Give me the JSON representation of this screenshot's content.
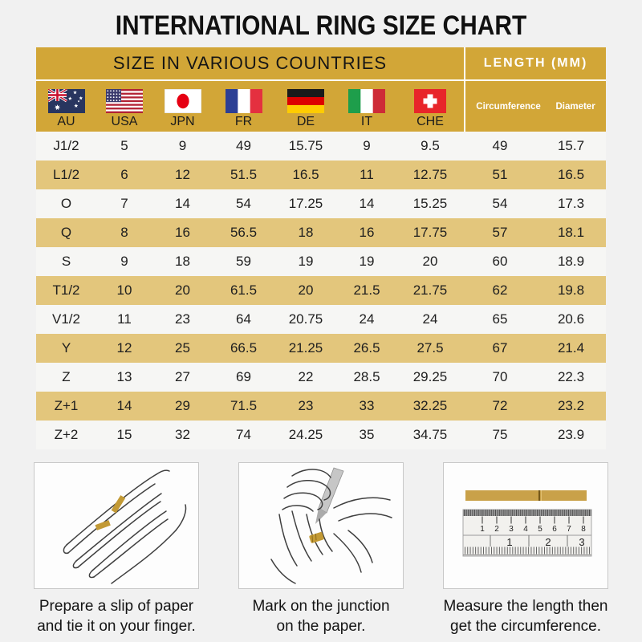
{
  "title": "INTERNATIONAL RING SIZE CHART",
  "table": {
    "header_left": "SIZE IN VARIOUS COUNTRIES",
    "header_right": "LENGTH (MM)",
    "length_sub_headers": [
      "Circumference",
      "Diameter"
    ],
    "countries": [
      {
        "code": "AU",
        "flag": "australia-flag-icon"
      },
      {
        "code": "USA",
        "flag": "usa-flag-icon"
      },
      {
        "code": "JPN",
        "flag": "japan-flag-icon"
      },
      {
        "code": "FR",
        "flag": "france-flag-icon"
      },
      {
        "code": "DE",
        "flag": "germany-flag-icon"
      },
      {
        "code": "IT",
        "flag": "italy-flag-icon"
      },
      {
        "code": "CHE",
        "flag": "switzerland-flag-icon"
      }
    ],
    "rows": [
      [
        "J1/2",
        "5",
        "9",
        "49",
        "15.75",
        "9",
        "9.5",
        "49",
        "15.7"
      ],
      [
        "L1/2",
        "6",
        "12",
        "51.5",
        "16.5",
        "11",
        "12.75",
        "51",
        "16.5"
      ],
      [
        "O",
        "7",
        "14",
        "54",
        "17.25",
        "14",
        "15.25",
        "54",
        "17.3"
      ],
      [
        "Q",
        "8",
        "16",
        "56.5",
        "18",
        "16",
        "17.75",
        "57",
        "18.1"
      ],
      [
        "S",
        "9",
        "18",
        "59",
        "19",
        "19",
        "20",
        "60",
        "18.9"
      ],
      [
        "T1/2",
        "10",
        "20",
        "61.5",
        "20",
        "21.5",
        "21.75",
        "62",
        "19.8"
      ],
      [
        "V1/2",
        "11",
        "23",
        "64",
        "20.75",
        "24",
        "24",
        "65",
        "20.6"
      ],
      [
        "Y",
        "12",
        "25",
        "66.5",
        "21.25",
        "26.5",
        "27.5",
        "67",
        "21.4"
      ],
      [
        "Z",
        "13",
        "27",
        "69",
        "22",
        "28.5",
        "29.25",
        "70",
        "22.3"
      ],
      [
        "Z+1",
        "14",
        "29",
        "71.5",
        "23",
        "33",
        "32.25",
        "72",
        "23.2"
      ],
      [
        "Z+2",
        "15",
        "32",
        "74",
        "24.25",
        "35",
        "34.75",
        "75",
        "23.9"
      ]
    ]
  },
  "instructions": [
    {
      "illustration": "hand-with-paper-slip",
      "caption": [
        "Prepare a slip of paper",
        "and tie it on your finger."
      ]
    },
    {
      "illustration": "marking-junction-with-pen",
      "caption": [
        "Mark on the junction",
        "on the paper."
      ]
    },
    {
      "illustration": "ruler-measuring-strip",
      "caption": [
        "Measure the length then",
        "get the circumference."
      ],
      "ruler_cm_numbers": [
        "1",
        "2",
        "3",
        "4",
        "5",
        "6",
        "7",
        "8"
      ],
      "ruler_inch_numbers": [
        "1",
        "2",
        "3"
      ]
    }
  ],
  "colors": {
    "gold": "#D2A637",
    "tan": "#E3C67C",
    "light_row": "#F6F6F4",
    "page_bg": "#F1F1F1",
    "slip_gold": "#C39A35",
    "header_text_dark": "#151515",
    "header_text_white": "#FFFFFF"
  }
}
